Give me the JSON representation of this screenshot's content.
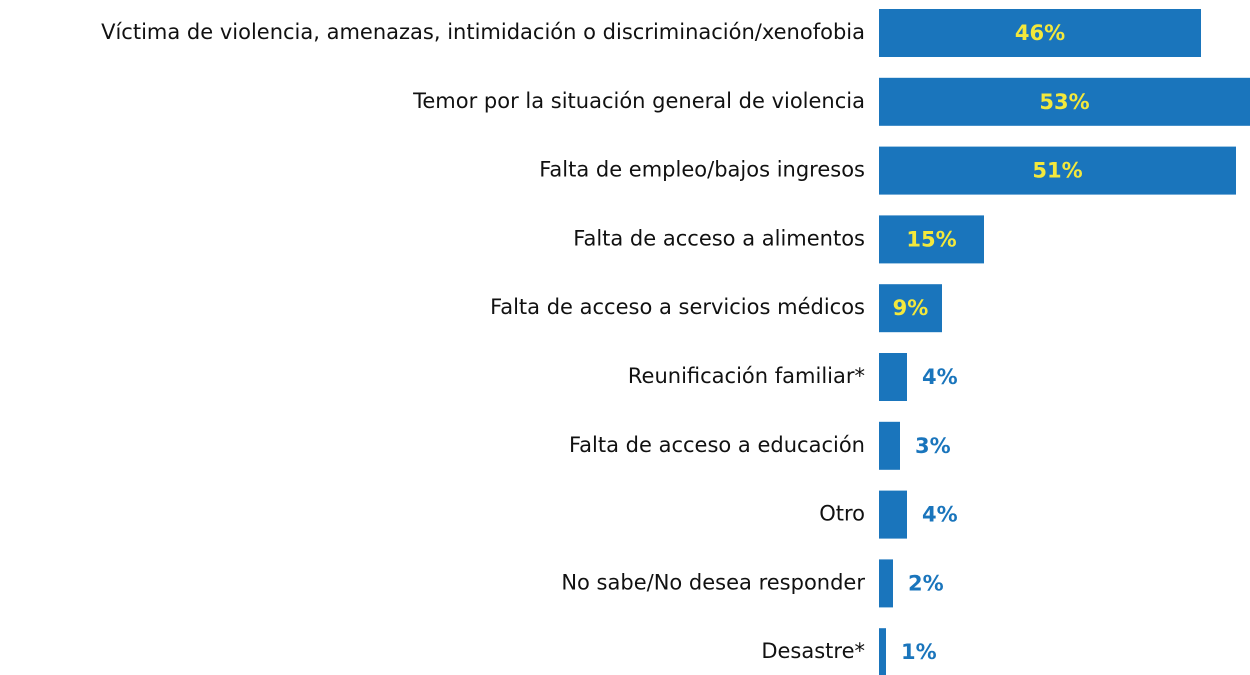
{
  "chart_data": {
    "type": "bar",
    "orientation": "horizontal",
    "categories": [
      "Víctima de violencia, amenazas, intimidación o discriminación/xenofobia",
      "Temor por la situación general de violencia",
      "Falta de empleo/bajos ingresos",
      "Falta de acceso a alimentos",
      "Falta de acceso a servicios médicos",
      "Reunificación familiar*",
      "Falta de acceso a educación",
      "Otro",
      "No sabe/No desea responder",
      "Desastre*"
    ],
    "values": [
      46,
      53,
      51,
      15,
      9,
      4,
      3,
      4,
      2,
      1
    ],
    "value_labels": [
      "46%",
      "53%",
      "51%",
      "15%",
      "9%",
      "4%",
      "3%",
      "4%",
      "2%",
      "1%"
    ],
    "color": "#1a75bc",
    "label_color_inside": "#f3e83c",
    "label_color_outside": "#1a75bc"
  }
}
